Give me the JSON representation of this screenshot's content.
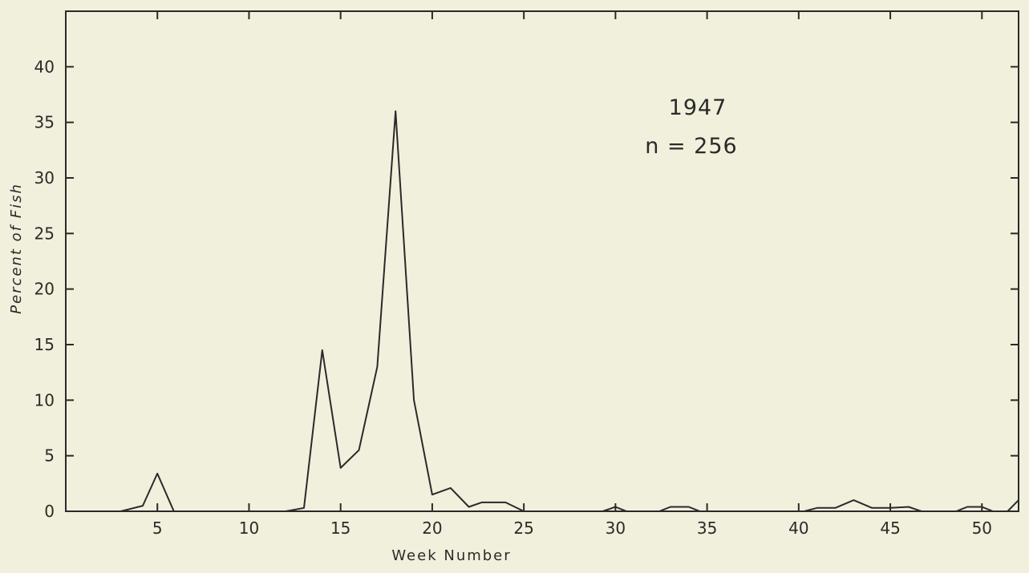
{
  "chart_data": {
    "type": "line",
    "xlabel": "Week Number",
    "ylabel": "Percent of Fish",
    "annotations": [
      "1947",
      "n = 256"
    ],
    "xlim": [
      0,
      52
    ],
    "ylim": [
      0,
      45
    ],
    "x_ticks": [
      5,
      10,
      15,
      20,
      25,
      30,
      35,
      40,
      45,
      50
    ],
    "y_ticks": [
      0,
      5,
      10,
      15,
      20,
      25,
      30,
      35,
      40
    ],
    "grid": false,
    "line_color": "#2a2a2a",
    "series": [
      {
        "segments": [
          [
            [
              3,
              0
            ],
            [
              4.2,
              0.5
            ],
            [
              5,
              3.4
            ],
            [
              5.9,
              0
            ]
          ],
          [
            [
              12,
              0
            ],
            [
              13,
              0.3
            ],
            [
              14,
              14.5
            ],
            [
              15,
              3.9
            ],
            [
              16,
              5.5
            ],
            [
              17,
              13
            ],
            [
              18,
              36
            ],
            [
              19,
              10
            ],
            [
              20,
              1.5
            ],
            [
              21,
              2.1
            ],
            [
              22,
              0.4
            ],
            [
              22.7,
              0.8
            ],
            [
              24,
              0.8
            ],
            [
              25,
              0
            ]
          ],
          [
            [
              29.3,
              0
            ],
            [
              30,
              0.4
            ],
            [
              30.6,
              0
            ]
          ],
          [
            [
              32.4,
              0
            ],
            [
              33,
              0.4
            ],
            [
              34,
              0.4
            ],
            [
              34.6,
              0
            ]
          ],
          [
            [
              40.3,
              0
            ],
            [
              41,
              0.3
            ],
            [
              42,
              0.3
            ],
            [
              43,
              1
            ],
            [
              44,
              0.3
            ],
            [
              45,
              0.3
            ],
            [
              46,
              0.4
            ],
            [
              46.7,
              0
            ]
          ],
          [
            [
              48.6,
              0
            ],
            [
              49.2,
              0.4
            ],
            [
              50,
              0.4
            ],
            [
              50.6,
              0
            ]
          ],
          [
            [
              51.4,
              0
            ],
            [
              52,
              1
            ]
          ]
        ]
      }
    ]
  }
}
